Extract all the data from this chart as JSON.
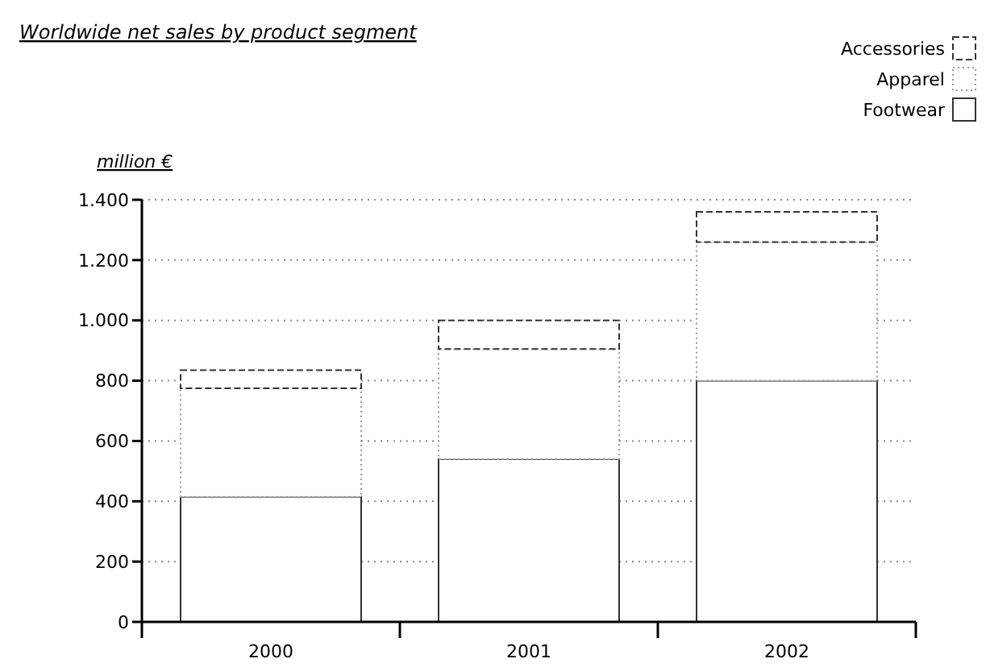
{
  "chart_data": {
    "type": "bar",
    "title": "Worldwide net sales by product segment",
    "ylabel": "million €",
    "categories": [
      "2000",
      "2001",
      "2002"
    ],
    "stacked": true,
    "series": [
      {
        "name": "Footwear",
        "color": "#ffffff",
        "line_style": "solid",
        "values": [
          415,
          540,
          800
        ]
      },
      {
        "name": "Apparel",
        "color": "#ffffff",
        "line_style": "dotted",
        "values": [
          360,
          365,
          460
        ]
      },
      {
        "name": "Accessories",
        "color": "#ffffff",
        "line_style": "dashed",
        "values": [
          60,
          95,
          100
        ]
      }
    ],
    "ylim": [
      0,
      1400
    ],
    "yticks": [
      0,
      200,
      400,
      600,
      800,
      {
        "value": 1000,
        "label": "1.000"
      },
      {
        "value": 1200,
        "label": "1.200"
      },
      {
        "value": 1400,
        "label": "1.400"
      }
    ],
    "grid": "y",
    "legend": "top right"
  }
}
